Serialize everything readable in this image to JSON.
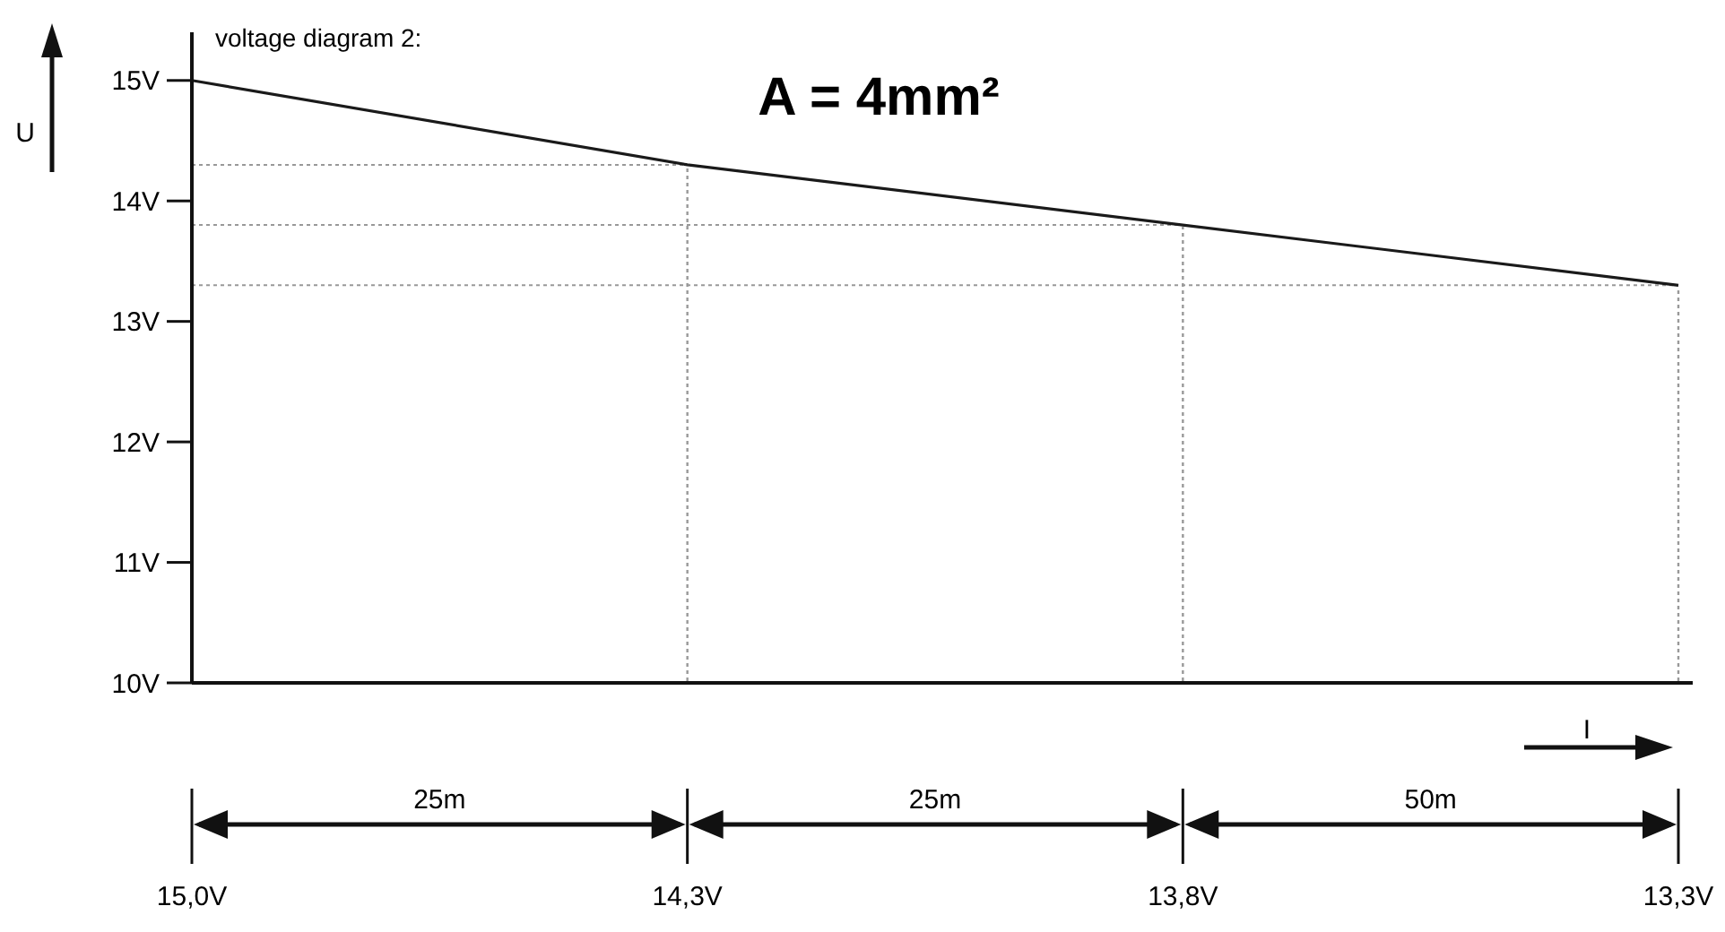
{
  "chart_data": {
    "type": "line",
    "title": "voltage diagram 2:",
    "subtitle": "A = 4mm²",
    "xlabel": "I",
    "ylabel": "U",
    "categories": [
      "15,0V",
      "14,3V",
      "13,8V",
      "13,3V"
    ],
    "series": [
      {
        "color": "#1a1a1a",
        "values": [
          15.0,
          14.3,
          13.8,
          13.3
        ]
      }
    ],
    "ylim": [
      10,
      15.4
    ],
    "yticks": [
      {
        "value": 10,
        "label": "10V"
      },
      {
        "value": 11,
        "label": "11V"
      },
      {
        "value": 12,
        "label": "12V"
      },
      {
        "value": 13,
        "label": "13V"
      },
      {
        "value": 14,
        "label": "14V"
      },
      {
        "value": 15,
        "label": "15V"
      }
    ],
    "ref_lines": [
      {
        "axis": "y",
        "value": 14.3,
        "color": "#999999",
        "line_style": "dotted"
      },
      {
        "axis": "y",
        "value": 13.8,
        "color": "#999999",
        "line_style": "dotted"
      },
      {
        "axis": "y",
        "value": 13.3,
        "color": "#999999",
        "line_style": "dotted"
      },
      {
        "axis": "x",
        "value": "14,3V",
        "color": "#999999",
        "line_style": "dotted"
      },
      {
        "axis": "x",
        "value": "13,8V",
        "color": "#999999",
        "line_style": "dotted"
      },
      {
        "axis": "x",
        "value": "13,3V",
        "color": "#999999",
        "line_style": "dotted"
      }
    ],
    "annotations": [
      "25m",
      "25m",
      "50m"
    ],
    "marker": "none",
    "line_style": "solid"
  }
}
